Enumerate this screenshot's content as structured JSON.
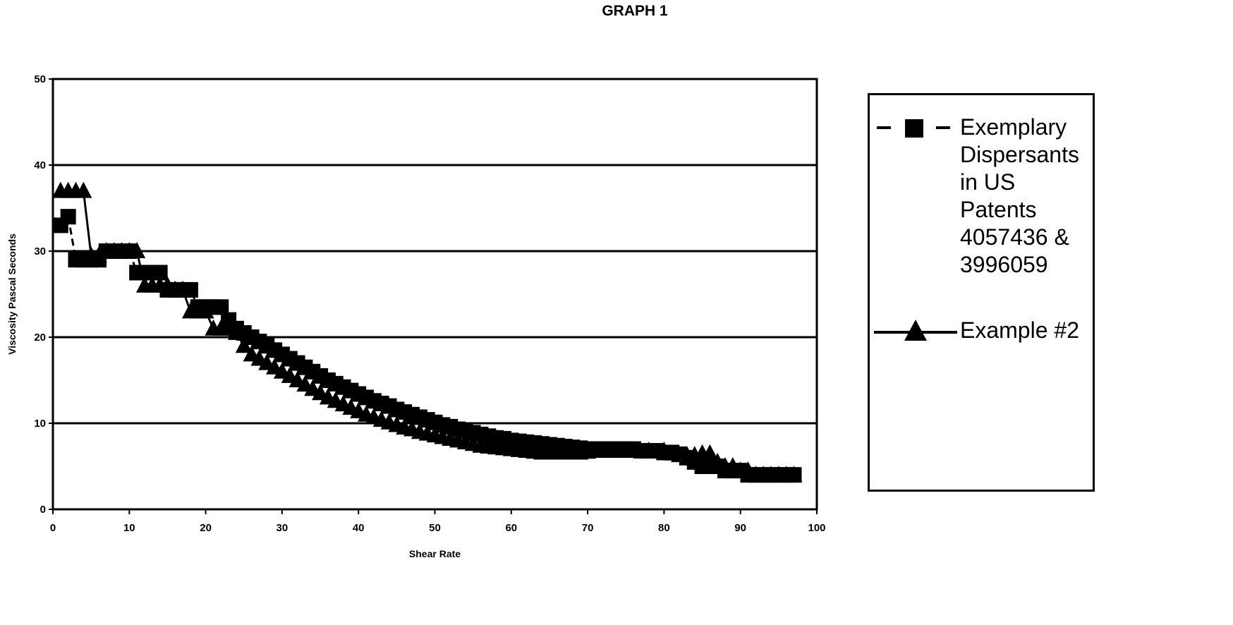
{
  "chart_data": {
    "type": "scatter",
    "title": "GRAPH 1",
    "xlabel": "Shear Rate",
    "ylabel": "Viscosity Pascal Seconds",
    "xlim": [
      0,
      100
    ],
    "ylim": [
      0,
      50
    ],
    "x_ticks": [
      "0",
      "10",
      "20",
      "30",
      "40",
      "50",
      "60",
      "70",
      "80",
      "90",
      "100"
    ],
    "y_ticks": [
      "0",
      "10",
      "20",
      "30",
      "40",
      "50"
    ],
    "grid": "horizontal",
    "legend_position": "right",
    "series": [
      {
        "name": "Exemplary Dispersants in US Patents 4057436 & 3996059",
        "marker": "square",
        "line": "dashed",
        "color": "#000000",
        "points": [
          [
            1,
            33
          ],
          [
            2,
            34
          ],
          [
            3,
            29
          ],
          [
            4,
            29
          ],
          [
            5,
            29
          ],
          [
            6,
            29
          ],
          [
            7,
            30
          ],
          [
            8,
            30
          ],
          [
            9,
            30
          ],
          [
            10,
            30
          ],
          [
            11,
            27.5
          ],
          [
            12,
            27.5
          ],
          [
            13,
            27.5
          ],
          [
            14,
            27.5
          ],
          [
            15,
            25.5
          ],
          [
            16,
            25.5
          ],
          [
            17,
            25.5
          ],
          [
            18,
            25.5
          ],
          [
            19,
            23.5
          ],
          [
            20,
            23.5
          ],
          [
            21,
            23.5
          ],
          [
            22,
            23.5
          ],
          [
            23,
            22
          ],
          [
            24,
            21
          ],
          [
            25,
            20.5
          ],
          [
            26,
            20
          ],
          [
            27,
            19.5
          ],
          [
            28,
            19
          ],
          [
            29,
            18.5
          ],
          [
            30,
            18
          ],
          [
            31,
            17.5
          ],
          [
            32,
            17
          ],
          [
            33,
            16.5
          ],
          [
            34,
            16
          ],
          [
            35,
            15.5
          ],
          [
            36,
            15
          ],
          [
            37,
            14.6
          ],
          [
            38,
            14.2
          ],
          [
            39,
            13.8
          ],
          [
            40,
            13.4
          ],
          [
            41,
            13
          ],
          [
            42,
            12.6
          ],
          [
            43,
            12.3
          ],
          [
            44,
            12
          ],
          [
            45,
            11.6
          ],
          [
            46,
            11.3
          ],
          [
            47,
            11
          ],
          [
            48,
            10.7
          ],
          [
            49,
            10.4
          ],
          [
            50,
            10.1
          ],
          [
            51,
            9.8
          ],
          [
            52,
            9.6
          ],
          [
            53,
            9.3
          ],
          [
            54,
            9.1
          ],
          [
            55,
            8.9
          ],
          [
            56,
            8.7
          ],
          [
            57,
            8.5
          ],
          [
            58,
            8.3
          ],
          [
            59,
            8.2
          ],
          [
            60,
            8
          ],
          [
            61,
            7.9
          ],
          [
            62,
            7.8
          ],
          [
            63,
            7.7
          ],
          [
            64,
            7.6
          ],
          [
            65,
            7.5
          ],
          [
            66,
            7.4
          ],
          [
            67,
            7.3
          ],
          [
            68,
            7.2
          ],
          [
            69,
            7.1
          ],
          [
            70,
            7
          ],
          [
            71,
            7
          ],
          [
            72,
            7
          ],
          [
            73,
            7
          ],
          [
            74,
            7
          ],
          [
            75,
            7
          ],
          [
            76,
            7
          ],
          [
            77,
            6.8
          ],
          [
            78,
            6.8
          ],
          [
            79,
            6.8
          ],
          [
            80,
            6.6
          ],
          [
            81,
            6.6
          ],
          [
            82,
            6.4
          ],
          [
            83,
            6
          ],
          [
            84,
            5.5
          ],
          [
            85,
            5
          ],
          [
            86,
            5
          ],
          [
            87,
            5
          ],
          [
            88,
            4.5
          ],
          [
            89,
            4.5
          ],
          [
            90,
            4.5
          ],
          [
            91,
            4
          ],
          [
            92,
            4
          ],
          [
            93,
            4
          ],
          [
            94,
            4
          ],
          [
            95,
            4
          ],
          [
            96,
            4
          ],
          [
            97,
            4
          ]
        ]
      },
      {
        "name": "Example #2",
        "marker": "triangle",
        "line": "solid",
        "color": "#000000",
        "points": [
          [
            1,
            37
          ],
          [
            2,
            37
          ],
          [
            3,
            37
          ],
          [
            4,
            37
          ],
          [
            5,
            29.5
          ],
          [
            6,
            29.5
          ],
          [
            7,
            30
          ],
          [
            8,
            30
          ],
          [
            9,
            30
          ],
          [
            10,
            30
          ],
          [
            11,
            30
          ],
          [
            12,
            26
          ],
          [
            13,
            26
          ],
          [
            14,
            26
          ],
          [
            15,
            26
          ],
          [
            16,
            25.5
          ],
          [
            17,
            25.5
          ],
          [
            18,
            23
          ],
          [
            19,
            23
          ],
          [
            20,
            23
          ],
          [
            21,
            21
          ],
          [
            22,
            21
          ],
          [
            23,
            21
          ],
          [
            24,
            20.5
          ],
          [
            25,
            19
          ],
          [
            26,
            18
          ],
          [
            27,
            17.5
          ],
          [
            28,
            17
          ],
          [
            29,
            16.5
          ],
          [
            30,
            16
          ],
          [
            31,
            15.5
          ],
          [
            32,
            15
          ],
          [
            33,
            14.5
          ],
          [
            34,
            14
          ],
          [
            35,
            13.5
          ],
          [
            36,
            13
          ],
          [
            37,
            12.6
          ],
          [
            38,
            12.2
          ],
          [
            39,
            11.8
          ],
          [
            40,
            11.4
          ],
          [
            41,
            11
          ],
          [
            42,
            10.7
          ],
          [
            43,
            10.4
          ],
          [
            44,
            10.1
          ],
          [
            45,
            9.8
          ],
          [
            46,
            9.5
          ],
          [
            47,
            9.3
          ],
          [
            48,
            9
          ],
          [
            49,
            8.8
          ],
          [
            50,
            8.6
          ],
          [
            51,
            8.4
          ],
          [
            52,
            8.2
          ],
          [
            53,
            8
          ],
          [
            54,
            7.8
          ],
          [
            55,
            7.6
          ],
          [
            56,
            7.4
          ],
          [
            57,
            7.3
          ],
          [
            58,
            7.2
          ],
          [
            59,
            7.1
          ],
          [
            60,
            7
          ],
          [
            61,
            6.9
          ],
          [
            62,
            6.8
          ],
          [
            63,
            6.7
          ],
          [
            64,
            6.6
          ],
          [
            65,
            6.6
          ],
          [
            66,
            6.6
          ],
          [
            67,
            6.6
          ],
          [
            68,
            6.6
          ],
          [
            69,
            6.6
          ],
          [
            70,
            6.7
          ],
          [
            72,
            6.8
          ],
          [
            74,
            6.8
          ],
          [
            76,
            6.8
          ],
          [
            78,
            6.8
          ],
          [
            80,
            6.8
          ],
          [
            81,
            6.5
          ],
          [
            82,
            6.3
          ],
          [
            83,
            6.3
          ],
          [
            84,
            6.3
          ],
          [
            85,
            6.5
          ],
          [
            86,
            6.5
          ],
          [
            87,
            5.5
          ],
          [
            88,
            5
          ],
          [
            89,
            5
          ],
          [
            90,
            4.5
          ],
          [
            91,
            4.5
          ],
          [
            92,
            4
          ],
          [
            93,
            4
          ],
          [
            94,
            4
          ],
          [
            95,
            4
          ],
          [
            96,
            4
          ],
          [
            97,
            4
          ]
        ]
      }
    ]
  }
}
